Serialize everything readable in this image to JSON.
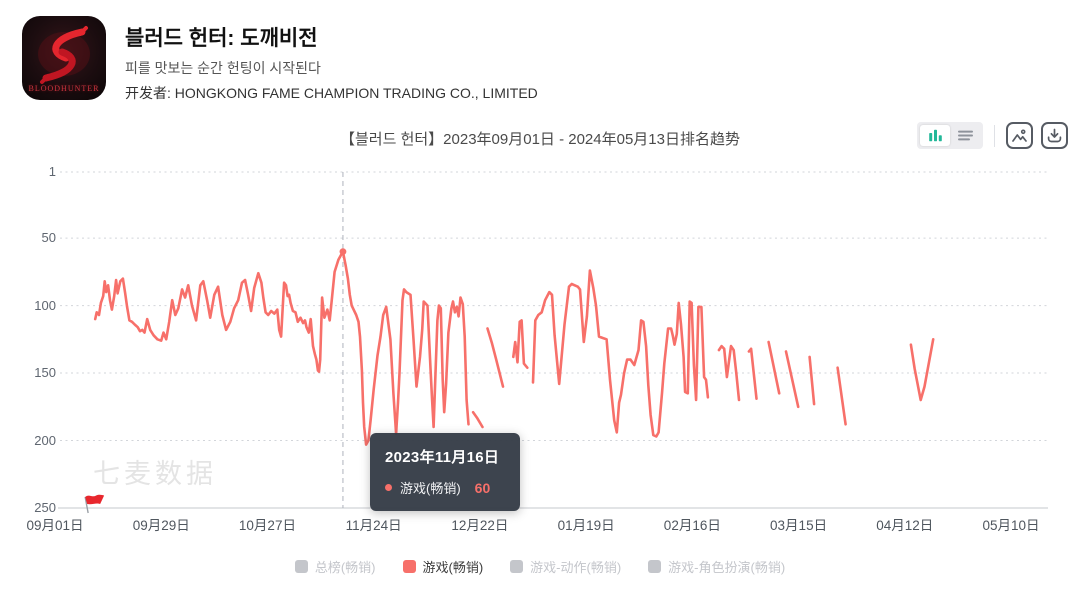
{
  "app": {
    "title": "블러드 헌터: 도깨비전",
    "subtitle": "피를 맛보는 순간 헌팅이 시작된다",
    "developer": "开发者: HONGKONG FAME CHAMPION TRADING CO., LIMITED",
    "icon_caption": "BLOODHUNTER"
  },
  "chart_header": {
    "title": "【블러드 헌터】2023年09月01日 - 2024年05月13日排名趋势"
  },
  "toolbar": {
    "icons": [
      "bar-chart-view",
      "list-view",
      "image-export",
      "download"
    ]
  },
  "watermark": "七麦数据",
  "tooltip": {
    "date": "2023年11月16日",
    "series": "游戏(畅销)",
    "value": "60"
  },
  "legend": [
    {
      "label": "总榜(畅销)",
      "active": false
    },
    {
      "label": "游戏(畅销)",
      "active": true
    },
    {
      "label": "游戏-动作(畅销)",
      "active": false
    },
    {
      "label": "游戏-角色扮演(畅销)",
      "active": false
    }
  ],
  "colors": {
    "accent": "#f7706a",
    "inactive": "#c4c6cb",
    "active_text": "#3c3c3c",
    "tooltip_bg": "#353c47",
    "teal": "#23b899",
    "grid": "#d2d5da",
    "axis": "#c6c9ce",
    "indicator": "#aeb3bc",
    "flag_red": "#e8272d"
  },
  "chart_data": {
    "type": "line",
    "title": "【블러드 헌터】2023年09月01日 - 2024年05月13日排名趋势",
    "period": {
      "start": "2023-09-01",
      "end": "2024-05-13"
    },
    "y_axis": {
      "label": "ranking",
      "ticks": [
        1,
        50,
        100,
        150,
        200,
        250
      ],
      "range": [
        1,
        250
      ],
      "inverted": true,
      "grid": "dotted"
    },
    "x_axis": {
      "unit": "days since 2023-09-01",
      "tick_labels": [
        "09月01日",
        "09月29日",
        "10月27日",
        "11月24日",
        "12月22日",
        "01月19日",
        "02月16日",
        "03月15日",
        "04月12日",
        "05月10日"
      ],
      "tick_day_offsets": [
        0,
        28,
        56,
        84,
        112,
        140,
        168,
        196,
        224,
        252
      ]
    },
    "highlight": {
      "date": "2023年11月16日",
      "series": "游戏(畅销)",
      "value": 60,
      "day": 75.9
    },
    "flag_day": 9,
    "legend_position": "bottom",
    "series": [
      {
        "name": "游戏(畅销)",
        "color": "#f7706a",
        "points": [
          [
            10.6,
            110
          ],
          [
            11,
            105
          ],
          [
            11.6,
            107
          ],
          [
            12.1,
            98
          ],
          [
            12.7,
            93
          ],
          [
            13.1,
            82
          ],
          [
            13.5,
            90
          ],
          [
            14,
            85
          ],
          [
            14.5,
            96
          ],
          [
            15,
            103
          ],
          [
            15.6,
            93
          ],
          [
            16.1,
            81
          ],
          [
            16.5,
            91
          ],
          [
            17.2,
            82
          ],
          [
            17.9,
            80
          ],
          [
            18.5,
            91
          ],
          [
            19,
            101
          ],
          [
            19.6,
            111
          ],
          [
            20.3,
            112
          ],
          [
            21,
            114
          ],
          [
            21.8,
            116
          ],
          [
            22.4,
            119
          ],
          [
            23,
            118
          ],
          [
            23.6,
            120
          ],
          [
            24.3,
            110
          ],
          [
            25.1,
            118
          ],
          [
            26,
            122
          ],
          [
            27,
            125
          ],
          [
            28,
            126
          ],
          [
            28.6,
            120
          ],
          [
            29.3,
            125
          ],
          [
            30.1,
            112
          ],
          [
            30.9,
            96
          ],
          [
            31.7,
            107
          ],
          [
            32.5,
            102
          ],
          [
            33.5,
            88
          ],
          [
            34.3,
            94
          ],
          [
            35.1,
            85
          ],
          [
            36.1,
            100
          ],
          [
            37.2,
            111
          ],
          [
            38.3,
            85
          ],
          [
            39.1,
            82
          ],
          [
            40.1,
            96
          ],
          [
            40.9,
            109
          ],
          [
            42,
            92
          ],
          [
            43,
            86
          ],
          [
            44.1,
            107
          ],
          [
            45.1,
            118
          ],
          [
            46.2,
            112
          ],
          [
            47.2,
            102
          ],
          [
            48.3,
            96
          ],
          [
            49.3,
            83
          ],
          [
            50.1,
            81
          ],
          [
            50.9,
            92
          ],
          [
            51.7,
            104
          ],
          [
            52.5,
            87
          ],
          [
            53.6,
            76
          ],
          [
            54.4,
            83
          ],
          [
            54.9,
            94
          ],
          [
            55.5,
            105
          ],
          [
            56.2,
            107
          ],
          [
            57,
            104
          ],
          [
            57.8,
            106
          ],
          [
            58.6,
            103
          ],
          [
            59.1,
            118
          ],
          [
            59.6,
            123
          ],
          [
            60,
            103
          ],
          [
            60.4,
            83
          ],
          [
            60.9,
            85
          ],
          [
            61.3,
            93
          ],
          [
            61.7,
            92
          ],
          [
            62.1,
            98
          ],
          [
            62.7,
            104
          ],
          [
            63.4,
            105
          ],
          [
            64,
            112
          ],
          [
            64.7,
            109
          ],
          [
            65.4,
            113
          ],
          [
            65.9,
            111
          ],
          [
            66.3,
            116
          ],
          [
            66.9,
            120
          ],
          [
            67.4,
            110
          ],
          [
            68,
            130
          ],
          [
            68.5,
            136
          ],
          [
            68.9,
            140
          ],
          [
            69.3,
            148
          ],
          [
            69.6,
            149
          ],
          [
            69.9,
            140
          ],
          [
            70.4,
            94
          ],
          [
            71,
            109
          ],
          [
            71.8,
            103
          ],
          [
            72.4,
            111
          ],
          [
            73,
            95
          ],
          [
            73.7,
            75
          ],
          [
            74.7,
            66
          ],
          [
            75.9,
            60
          ],
          [
            76.6,
            70
          ],
          [
            77.2,
            80
          ],
          [
            77.7,
            92
          ],
          [
            78.2,
            100
          ],
          [
            78.7,
            103
          ],
          [
            79.4,
            107
          ],
          [
            80,
            112
          ],
          [
            80.4,
            123
          ],
          [
            80.9,
            148
          ],
          [
            81.2,
            172
          ],
          [
            81.5,
            190
          ],
          [
            82,
            203
          ],
          [
            82.6,
            200
          ],
          [
            83.2,
            185
          ],
          [
            84,
            162
          ],
          [
            85,
            137
          ],
          [
            85.8,
            123
          ],
          [
            86.5,
            107
          ],
          [
            87.3,
            101
          ],
          [
            88.4,
            125
          ],
          [
            89.2,
            165
          ],
          [
            89.9,
            195
          ],
          [
            90.4,
            172
          ],
          [
            90.8,
            150
          ],
          [
            91.6,
            96
          ],
          [
            92,
            88
          ],
          [
            92.6,
            90
          ],
          [
            93.7,
            92
          ],
          [
            94.5,
            125
          ],
          [
            95.3,
            160
          ],
          [
            96.2,
            138
          ],
          [
            96.8,
            118
          ],
          [
            97.2,
            97
          ],
          [
            98.2,
            100
          ],
          [
            99,
            148
          ],
          [
            99.4,
            170
          ],
          [
            99.8,
            190
          ],
          [
            100.3,
            150
          ],
          [
            100.8,
            111
          ],
          [
            101.2,
            100
          ],
          [
            101.7,
            102
          ],
          [
            102.2,
            155
          ],
          [
            102.6,
            179
          ],
          [
            103.1,
            158
          ],
          [
            103.7,
            120
          ],
          [
            104.5,
            102
          ],
          [
            104.9,
            97
          ],
          [
            105.4,
            105
          ],
          [
            105.9,
            101
          ],
          [
            106.4,
            108
          ],
          [
            106.9,
            94
          ],
          [
            107.5,
            99
          ],
          [
            108,
            123
          ],
          [
            108.5,
            170
          ],
          [
            109,
            188
          ],
          null,
          [
            110.2,
            179
          ],
          [
            111.2,
            183
          ],
          [
            112.7,
            190
          ],
          null,
          [
            114,
            117
          ],
          [
            115.2,
            128
          ],
          [
            116.3,
            140
          ],
          [
            117.2,
            150
          ],
          [
            118.1,
            160
          ],
          null,
          [
            120.8,
            138
          ],
          [
            121.3,
            127
          ],
          [
            121.9,
            142
          ],
          [
            122.5,
            112
          ],
          [
            123,
            111
          ],
          [
            123.6,
            143
          ],
          [
            124.5,
            146
          ],
          null,
          [
            126,
            157
          ],
          [
            126.6,
            111
          ],
          [
            127.4,
            107
          ],
          [
            128.3,
            105
          ],
          [
            129.2,
            96
          ],
          [
            130.3,
            90
          ],
          [
            131,
            92
          ],
          [
            131.7,
            122
          ],
          [
            132.9,
            158
          ],
          [
            134.3,
            114
          ],
          [
            135.5,
            86
          ],
          [
            136.2,
            84
          ],
          [
            137,
            85
          ],
          [
            137.8,
            86
          ],
          [
            138.4,
            88
          ],
          [
            139.4,
            127
          ],
          [
            140.2,
            108
          ],
          [
            141,
            74
          ],
          [
            141.9,
            87
          ],
          [
            142.6,
            100
          ],
          [
            143.4,
            123
          ],
          [
            144.4,
            124
          ],
          [
            145.4,
            125
          ],
          [
            146.3,
            155
          ],
          [
            147.4,
            185
          ],
          [
            148.1,
            194
          ],
          [
            148.7,
            172
          ],
          [
            149.2,
            166
          ],
          [
            150,
            150
          ],
          [
            150.8,
            140
          ],
          [
            151.7,
            140
          ],
          [
            152.7,
            144
          ],
          [
            153.8,
            133
          ],
          [
            154.5,
            111
          ],
          [
            155.1,
            112
          ],
          [
            155.8,
            130
          ],
          [
            156.4,
            159
          ],
          [
            157,
            181
          ],
          [
            157.7,
            196
          ],
          [
            158.5,
            197
          ],
          [
            159.1,
            194
          ],
          [
            160,
            165
          ],
          [
            160.6,
            143
          ],
          [
            161.6,
            117
          ],
          [
            162.4,
            117
          ],
          [
            162.9,
            123
          ],
          [
            163.3,
            129
          ],
          [
            163.9,
            121
          ],
          [
            164.4,
            98
          ],
          [
            165,
            114
          ],
          [
            165.7,
            138
          ],
          [
            166.1,
            164
          ],
          [
            166.8,
            165
          ],
          [
            167.3,
            97
          ],
          [
            167.8,
            98
          ],
          [
            168.4,
            144
          ],
          [
            169,
            170
          ],
          [
            169.6,
            101
          ],
          [
            170.4,
            101
          ],
          [
            171.1,
            153
          ],
          [
            171.6,
            155
          ],
          [
            172.1,
            168
          ],
          null,
          [
            175,
            133
          ],
          [
            175.7,
            130
          ],
          [
            176.4,
            132
          ],
          [
            177.1,
            153
          ],
          [
            178.2,
            130
          ],
          [
            178.9,
            133
          ],
          [
            179.6,
            150
          ],
          [
            180.3,
            170
          ],
          null,
          [
            182.9,
            134
          ],
          [
            183.5,
            132
          ],
          [
            184.9,
            169
          ],
          null,
          [
            188.1,
            127
          ],
          [
            190.9,
            165
          ],
          null,
          [
            192.7,
            134
          ],
          [
            195.9,
            175
          ],
          null,
          [
            198.9,
            138
          ],
          [
            200.1,
            173
          ],
          null,
          [
            206.3,
            146
          ],
          [
            208.4,
            188
          ],
          null,
          [
            225.6,
            129
          ],
          [
            226.6,
            147
          ],
          [
            228.2,
            170
          ],
          [
            229.2,
            160
          ],
          [
            231.5,
            125
          ]
        ]
      }
    ]
  }
}
